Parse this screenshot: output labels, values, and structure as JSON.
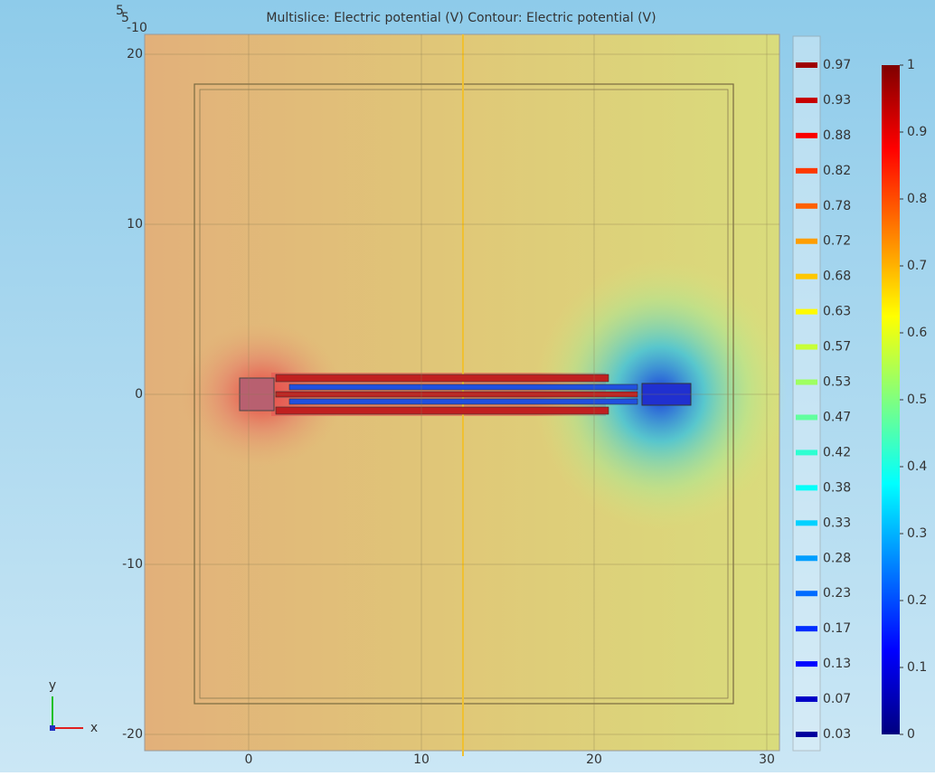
{
  "plot": {
    "title": "Multislice: Electric potential (V)  Contour: Electric potential (V)",
    "corner_labels": [
      "5",
      "5",
      "-10"
    ],
    "xticks": [
      0,
      10,
      20,
      30
    ],
    "yticks": [
      20,
      10,
      0,
      -10,
      -20
    ]
  },
  "contour_legend": {
    "levels": [
      0.97,
      0.93,
      0.88,
      0.82,
      0.78,
      0.72,
      0.68,
      0.63,
      0.57,
      0.53,
      0.47,
      0.42,
      0.38,
      0.33,
      0.28,
      0.23,
      0.17,
      0.13,
      0.07,
      0.03
    ]
  },
  "colorbar": {
    "ticks": [
      0,
      0.1,
      0.2,
      0.3,
      0.4,
      0.5,
      0.6,
      0.7,
      0.8,
      0.9,
      1
    ]
  },
  "axis_triad": {
    "x": "x",
    "y": "y"
  }
}
